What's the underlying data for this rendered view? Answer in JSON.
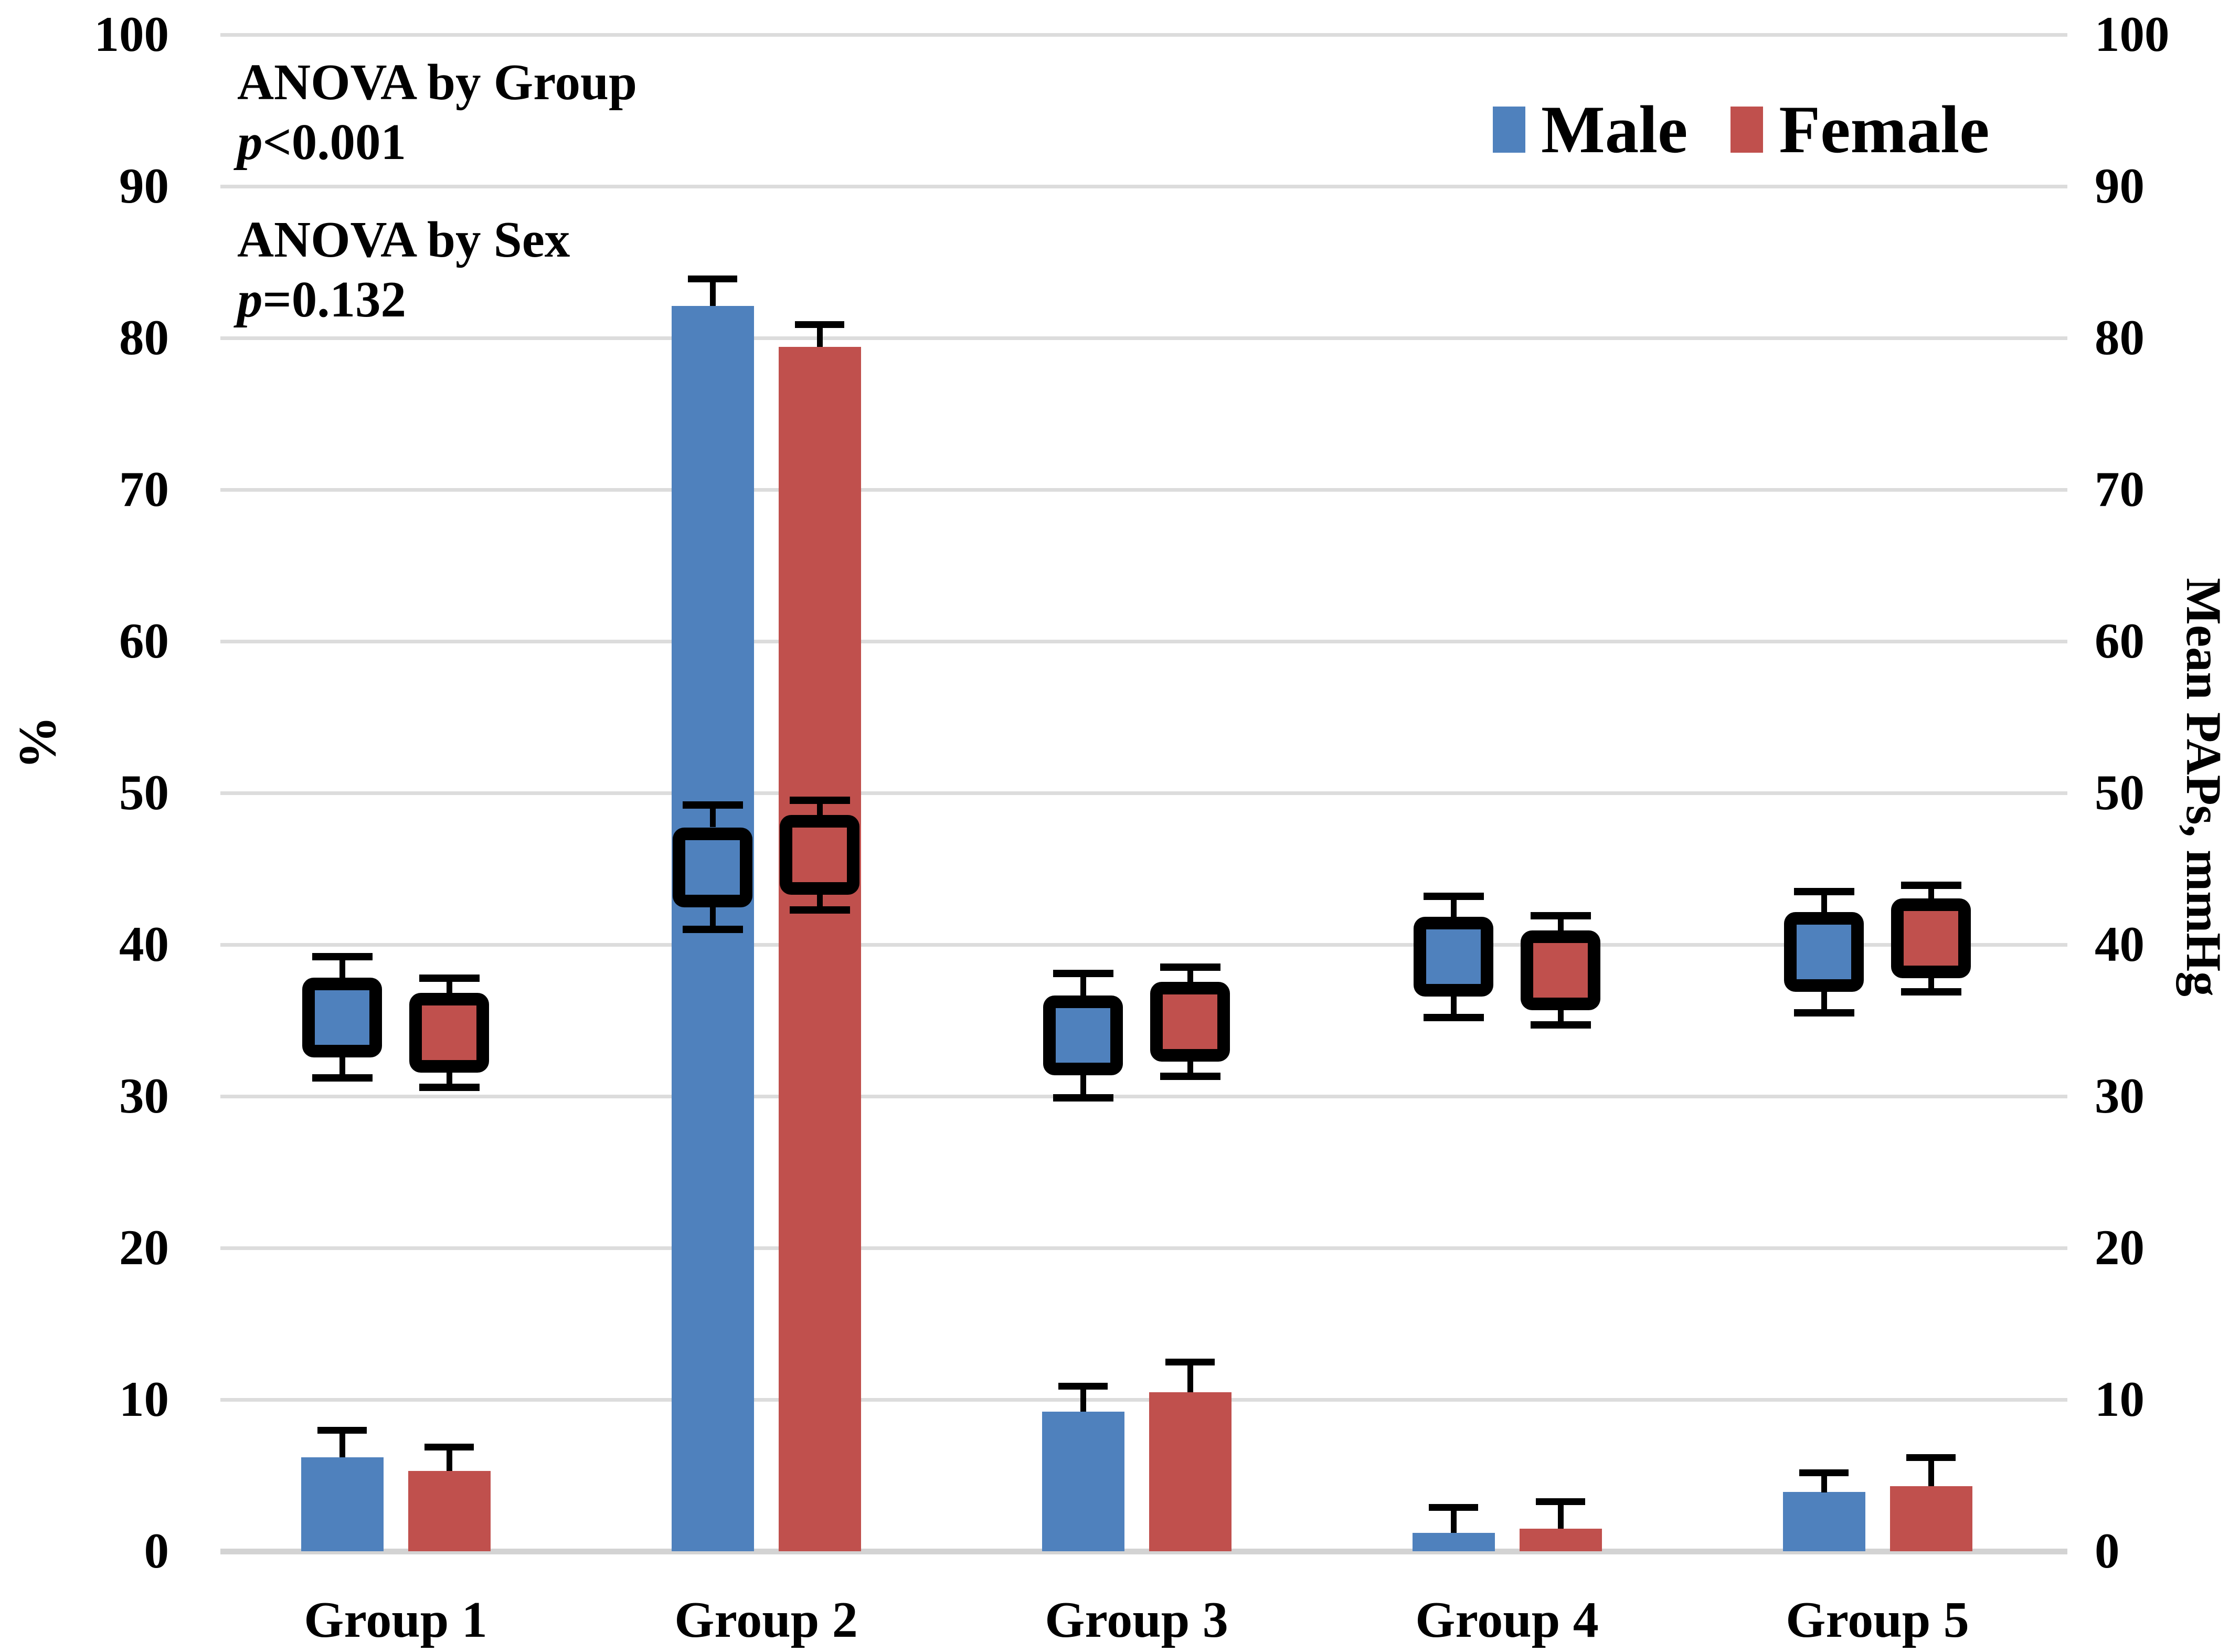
{
  "chart_data": {
    "type": "bar",
    "title": "",
    "categories": [
      "Group 1",
      "Group 2",
      "Group 3",
      "Group 4",
      "Group 5"
    ],
    "series": [
      {
        "name": "Male",
        "color": "#4F81BD",
        "axis": "left",
        "unit": "%",
        "values": [
          6.2,
          82.1,
          9.2,
          1.2,
          3.9
        ],
        "errors_up": [
          1.8,
          1.8,
          1.7,
          1.7,
          1.3
        ]
      },
      {
        "name": "Female",
        "color": "#C0504D",
        "axis": "left",
        "unit": "%",
        "values": [
          5.3,
          79.4,
          10.5,
          1.5,
          4.3
        ],
        "errors_up": [
          1.6,
          1.5,
          2.0,
          1.8,
          1.9
        ]
      }
    ],
    "secondary_series": [
      {
        "name": "Male",
        "color": "#4F81BD",
        "axis": "right",
        "unit": "mmHg",
        "marker": "square",
        "values": [
          35.2,
          45.1,
          34.0,
          39.2,
          39.5
        ],
        "errors": [
          4.0,
          4.1,
          4.1,
          4.0,
          4.0
        ]
      },
      {
        "name": "Female",
        "color": "#C0504D",
        "axis": "right",
        "unit": "mmHg",
        "marker": "square",
        "values": [
          34.2,
          45.9,
          34.9,
          38.3,
          40.4
        ],
        "errors": [
          3.6,
          3.6,
          3.6,
          3.6,
          3.5
        ]
      }
    ],
    "left_axis": {
      "title": "%",
      "min": 0,
      "max": 100,
      "tick_labels": [
        "0",
        "10",
        "20",
        "30",
        "40",
        "50",
        "60",
        "70",
        "80",
        "90",
        "100"
      ]
    },
    "right_axis": {
      "title": "Mean PAPs, mmHg",
      "min": 0,
      "max": 100,
      "tick_labels": [
        "0",
        "10",
        "20",
        "30",
        "40",
        "50",
        "60",
        "70",
        "80",
        "90",
        "100"
      ]
    },
    "grid": "horizontal",
    "legend_position": "top-right"
  },
  "annotations": {
    "group_line1": "ANOVA by Group",
    "p_symbol": "p",
    "group_p_rest": "<0.001",
    "sex_line1": "ANOVA by Sex",
    "sex_p_rest": "=0.132"
  },
  "legend": {
    "items": [
      {
        "label": "Male",
        "color": "#4F81BD"
      },
      {
        "label": "Female",
        "color": "#C0504D"
      }
    ]
  },
  "axes": {
    "left_title": "%",
    "right_title": "Mean PAPs, mmHg"
  },
  "colors": {
    "male": "#4F81BD",
    "female": "#C0504D",
    "gridline": "#DCDCDC",
    "axis_line": "#D3D3D3",
    "error_bar": "#000000"
  }
}
